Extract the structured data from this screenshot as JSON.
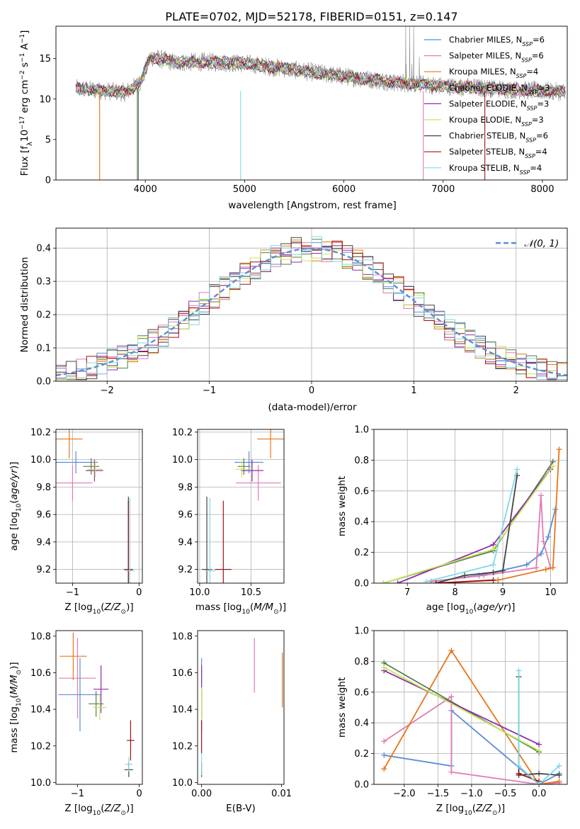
{
  "title": "PLATE=0702, MJD=52178, FIBERID=0151, z=0.147",
  "colors": {
    "chabrier_miles": "#5b8ed6",
    "salpeter_miles": "#e07bb5",
    "kroupa_miles": "#e8751a",
    "chabrier_elodie": "#5a7a55",
    "salpeter_elodie": "#8e2fa8",
    "kroupa_elodie": "#c8e65a",
    "chabrier_stelib": "#444444",
    "salpeter_stelib": "#a01010",
    "kroupa_stelib": "#80d8e6",
    "normal": "#5b8ed6",
    "grid": "#b0b0b0"
  },
  "chart_data": [
    {
      "id": "spectrum",
      "type": "line",
      "xlabel": "wavelength [Angstrom, rest frame]",
      "ylabel": "Flux [f_λ 10^-17 erg cm^-2 s^-1 A^-1]",
      "xlim": [
        3100,
        8250
      ],
      "ylim": [
        0,
        19
      ],
      "xticks": [
        "4000",
        "5000",
        "6000",
        "7000",
        "8000"
      ],
      "yticks": [
        "0",
        "5",
        "10",
        "15"
      ],
      "grid": false,
      "legend_position": "upper-right",
      "legend": [
        {
          "key": "chabrier_miles",
          "label": "Chabrier MILES, N",
          "sub": "SSP",
          "val": "=6"
        },
        {
          "key": "salpeter_miles",
          "label": "Salpeter MILES, N",
          "sub": "SSP",
          "val": "=6"
        },
        {
          "key": "kroupa_miles",
          "label": "Kroupa MILES, N",
          "sub": "SSP",
          "val": "=4"
        },
        {
          "key": "chabrier_elodie",
          "label": "Chabrier ELODIE, N",
          "sub": "SSP",
          "val": "=3"
        },
        {
          "key": "salpeter_elodie",
          "label": "Salpeter ELODIE, N",
          "sub": "SSP",
          "val": "=3"
        },
        {
          "key": "kroupa_elodie",
          "label": "Kroupa ELODIE, N",
          "sub": "SSP",
          "val": "=3"
        },
        {
          "key": "chabrier_stelib",
          "label": "Chabrier STELIB, N",
          "sub": "SSP",
          "val": "=6"
        },
        {
          "key": "salpeter_stelib",
          "label": "Salpeter STELIB, N",
          "sub": "SSP",
          "val": "=4"
        },
        {
          "key": "kroupa_stelib",
          "label": "Kroupa STELIB, N",
          "sub": "SSP",
          "val": "=4"
        }
      ],
      "continuum": [
        [
          3300,
          11.3
        ],
        [
          3600,
          11.0
        ],
        [
          3800,
          10.8
        ],
        [
          3950,
          12.0
        ],
        [
          4050,
          15.2
        ],
        [
          4300,
          14.5
        ],
        [
          4600,
          14.6
        ],
        [
          5000,
          14.4
        ],
        [
          5500,
          13.6
        ],
        [
          6000,
          12.8
        ],
        [
          6500,
          12.1
        ],
        [
          7000,
          11.6
        ],
        [
          7500,
          11.3
        ],
        [
          8000,
          11.0
        ],
        [
          8200,
          10.9
        ]
      ],
      "absorptions": [
        {
          "key": "kroupa_miles",
          "x": 3540
        },
        {
          "key": "chabrier_elodie",
          "x": 3920
        },
        {
          "key": "chabrier_elodie",
          "x": 3930
        },
        {
          "key": "kroupa_stelib",
          "x": 4960
        },
        {
          "key": "salpeter_miles",
          "x": 6800
        },
        {
          "key": "salpeter_stelib",
          "x": 7420
        }
      ]
    },
    {
      "id": "residuals",
      "type": "line",
      "xlabel": "(data-model)/error",
      "ylabel": "Normed distribution",
      "xlim": [
        -2.5,
        2.5
      ],
      "ylim": [
        0,
        0.46
      ],
      "xticks": [
        "−2",
        "−1",
        "0",
        "1",
        "2"
      ],
      "yticks": [
        "0.0",
        "0.1",
        "0.2",
        "0.3",
        "0.4"
      ],
      "grid": true,
      "legend_position": "upper-right",
      "normal_label": "N(0,1)",
      "bin_width": 0.1
    },
    {
      "id": "age_vs_Z",
      "type": "scatter",
      "xlabel": "Z [log10(Z/Z⊙)]",
      "ylabel": "age [log10(age/yr)]",
      "xlim": [
        -1.25,
        0.05
      ],
      "ylim": [
        9.1,
        10.22
      ],
      "xticks": [
        "−1",
        "0"
      ],
      "yticks": [
        "9.2",
        "9.4",
        "9.6",
        "9.8",
        "10.0",
        "10.2"
      ],
      "grid": true,
      "points": [
        {
          "key": "chabrier_miles",
          "x": -0.95,
          "y": 9.98,
          "ex": 0.33,
          "ey": 0.08
        },
        {
          "key": "salpeter_miles",
          "x": -1.0,
          "y": 9.83,
          "ex": 0.3,
          "ey": 0.13
        },
        {
          "key": "kroupa_miles",
          "x": -1.05,
          "y": 10.15,
          "ex": 0.2,
          "ey": 0.14
        },
        {
          "key": "chabrier_elodie",
          "x": -0.72,
          "y": 9.95,
          "ex": 0.12,
          "ey": 0.06
        },
        {
          "key": "salpeter_elodie",
          "x": -0.67,
          "y": 9.92,
          "ex": 0.13,
          "ey": 0.08
        },
        {
          "key": "kroupa_elodie",
          "x": -0.66,
          "y": 9.93,
          "ex": 0.11,
          "ey": 0.06
        },
        {
          "key": "chabrier_stelib",
          "x": -0.16,
          "y": 9.2,
          "ex": 0.07,
          "ey": 0.53
        },
        {
          "key": "salpeter_stelib",
          "x": -0.16,
          "y": 9.2,
          "ex": 0.06,
          "ey": 0.5
        },
        {
          "key": "kroupa_stelib",
          "x": -0.14,
          "y": 9.19,
          "ex": 0.07,
          "ey": 0.53
        }
      ]
    },
    {
      "id": "age_vs_mass",
      "type": "scatter",
      "xlabel": "mass [log10(M/M⊙)]",
      "ylabel": "",
      "xlim": [
        9.98,
        10.82
      ],
      "ylim": [
        9.1,
        10.22
      ],
      "xticks": [
        "10.0",
        "10.5"
      ],
      "yticks": [
        "9.2",
        "9.4",
        "9.6",
        "9.8",
        "10.0",
        "10.2"
      ],
      "grid": true,
      "points": [
        {
          "key": "chabrier_miles",
          "x": 10.48,
          "y": 9.98,
          "ex": 0.14,
          "ey": 0.08
        },
        {
          "key": "salpeter_miles",
          "x": 10.57,
          "y": 9.83,
          "ex": 0.22,
          "ey": 0.13
        },
        {
          "key": "kroupa_miles",
          "x": 10.69,
          "y": 10.15,
          "ex": 0.13,
          "ey": 0.14
        },
        {
          "key": "chabrier_elodie",
          "x": 10.43,
          "y": 9.95,
          "ex": 0.06,
          "ey": 0.06
        },
        {
          "key": "salpeter_elodie",
          "x": 10.51,
          "y": 9.92,
          "ex": 0.11,
          "ey": 0.08
        },
        {
          "key": "kroupa_elodie",
          "x": 10.41,
          "y": 9.93,
          "ex": 0.06,
          "ey": 0.06
        },
        {
          "key": "chabrier_stelib",
          "x": 10.07,
          "y": 9.2,
          "ex": 0.05,
          "ey": 0.53
        },
        {
          "key": "salpeter_stelib",
          "x": 10.23,
          "y": 9.2,
          "ex": 0.08,
          "ey": 0.5
        },
        {
          "key": "kroupa_stelib",
          "x": 10.1,
          "y": 9.19,
          "ex": 0.05,
          "ey": 0.53
        }
      ]
    },
    {
      "id": "weight_vs_age",
      "type": "line",
      "xlabel": "age [log10(age/yr)]",
      "ylabel": "mass weight",
      "xlim": [
        6.3,
        10.35
      ],
      "ylim": [
        0,
        1.0
      ],
      "xticks": [
        "7",
        "8",
        "9",
        "10"
      ],
      "yticks": [
        "0.0",
        "0.2",
        "0.4",
        "0.6",
        "0.8",
        "1.0"
      ],
      "grid": true,
      "series": [
        {
          "key": "chabrier_miles",
          "x": [
            7.5,
            8.5,
            9.5,
            9.8,
            9.95,
            10.1
          ],
          "y": [
            0.01,
            0.05,
            0.12,
            0.19,
            0.3,
            0.48
          ]
        },
        {
          "key": "salpeter_miles",
          "x": [
            7.5,
            8.6,
            9.7,
            9.8,
            9.85,
            10.0
          ],
          "y": [
            0.01,
            0.05,
            0.1,
            0.57,
            0.27,
            0.1
          ]
        },
        {
          "key": "kroupa_miles",
          "x": [
            7.7,
            8.9,
            9.9,
            10.05,
            10.18
          ],
          "y": [
            0.0,
            0.02,
            0.09,
            0.1,
            0.87
          ]
        },
        {
          "key": "chabrier_elodie",
          "x": [
            6.5,
            8.8,
            10.05
          ],
          "y": [
            0.0,
            0.21,
            0.79
          ]
        },
        {
          "key": "salpeter_elodie",
          "x": [
            6.8,
            8.8,
            10.0
          ],
          "y": [
            0.0,
            0.25,
            0.74
          ]
        },
        {
          "key": "kroupa_elodie",
          "x": [
            6.5,
            8.8,
            10.05
          ],
          "y": [
            0.0,
            0.22,
            0.76
          ]
        },
        {
          "key": "chabrier_stelib",
          "x": [
            7.6,
            8.2,
            8.8,
            9.0,
            9.3
          ],
          "y": [
            0.0,
            0.05,
            0.07,
            0.08,
            0.7
          ]
        },
        {
          "key": "salpeter_stelib",
          "x": [
            7.6,
            8.8
          ],
          "y": [
            0.0,
            0.02
          ]
        },
        {
          "key": "kroupa_stelib",
          "x": [
            7.4,
            8.8,
            9.3
          ],
          "y": [
            0.01,
            0.12,
            0.74
          ]
        }
      ]
    },
    {
      "id": "mass_vs_Z",
      "type": "scatter",
      "xlabel": "Z [log10(Z/Z⊙)]",
      "ylabel": "mass [log10(M/M⊙)]",
      "xlim": [
        -1.35,
        0.05
      ],
      "ylim": [
        9.99,
        10.83
      ],
      "xticks": [
        "−1",
        "0"
      ],
      "yticks": [
        "10.0",
        "10.2",
        "10.4",
        "10.6",
        "10.8"
      ],
      "grid": false,
      "points": [
        {
          "key": "chabrier_miles",
          "x": -0.96,
          "y": 10.48,
          "ex": 0.35,
          "ey": 0.2
        },
        {
          "key": "salpeter_miles",
          "x": -1.0,
          "y": 10.57,
          "ex": 0.3,
          "ey": 0.22
        },
        {
          "key": "kroupa_miles",
          "x": -1.07,
          "y": 10.69,
          "ex": 0.22,
          "ey": 0.13
        },
        {
          "key": "chabrier_elodie",
          "x": -0.7,
          "y": 10.43,
          "ex": 0.12,
          "ey": 0.07
        },
        {
          "key": "salpeter_elodie",
          "x": -0.62,
          "y": 10.51,
          "ex": 0.12,
          "ey": 0.13
        },
        {
          "key": "kroupa_elodie",
          "x": -0.64,
          "y": 10.41,
          "ex": 0.11,
          "ey": 0.07
        },
        {
          "key": "chabrier_stelib",
          "x": -0.17,
          "y": 10.07,
          "ex": 0.07,
          "ey": 0.04
        },
        {
          "key": "salpeter_stelib",
          "x": -0.14,
          "y": 10.23,
          "ex": 0.06,
          "ey": 0.11
        },
        {
          "key": "kroupa_stelib",
          "x": -0.17,
          "y": 10.1,
          "ex": 0.06,
          "ey": 0.04
        }
      ]
    },
    {
      "id": "mass_vs_ebv",
      "type": "scatter",
      "xlabel": "E(B-V)",
      "ylabel": "",
      "xlim": [
        -0.0005,
        0.0103
      ],
      "ylim": [
        9.99,
        10.83
      ],
      "xticks": [
        "0.00",
        "0.01"
      ],
      "yticks": [
        "10.0",
        "10.2",
        "10.4",
        "10.6",
        "10.8"
      ],
      "grid": false,
      "points": [
        {
          "key": "chabrier_miles",
          "x": 0.0,
          "y": 10.48,
          "ey": 0.2
        },
        {
          "key": "salpeter_miles",
          "x": 0.0066,
          "y": 10.64,
          "ey": 0.15
        },
        {
          "key": "kroupa_miles",
          "x": 0.0101,
          "y": 10.56,
          "ey": 0.15
        },
        {
          "key": "chabrier_elodie",
          "x": 0.0,
          "y": 10.43,
          "ey": 0.07
        },
        {
          "key": "salpeter_elodie",
          "x": 0.0,
          "y": 10.58,
          "ey": 0.06
        },
        {
          "key": "kroupa_elodie",
          "x": 0.0,
          "y": 10.41,
          "ey": 0.11
        },
        {
          "key": "chabrier_stelib",
          "x": 0.0,
          "y": 10.07,
          "ey": 0.04
        },
        {
          "key": "salpeter_stelib",
          "x": 0.0,
          "y": 10.25,
          "ey": 0.09
        },
        {
          "key": "kroupa_stelib",
          "x": 0.0,
          "y": 10.1,
          "ey": 0.06
        }
      ]
    },
    {
      "id": "weight_vs_Z",
      "type": "line",
      "xlabel": "Z [log10(Z/Z⊙)]",
      "ylabel": "mass weight",
      "xlim": [
        -2.45,
        0.42
      ],
      "ylim": [
        0,
        1.0
      ],
      "xticks": [
        "−2.0",
        "−1.5",
        "−1.0",
        "−0.5",
        "0.0"
      ],
      "yticks": [
        "0.0",
        "0.2",
        "0.4",
        "0.6",
        "0.8",
        "1.0"
      ],
      "grid": true,
      "series": [
        {
          "key": "chabrier_miles",
          "x": [
            -2.3,
            -1.3,
            -1.3,
            0.0,
            0.3
          ],
          "y": [
            0.19,
            0.12,
            0.48,
            0.0,
            0.07
          ]
        },
        {
          "key": "salpeter_miles",
          "x": [
            -2.3,
            -1.3,
            -1.3,
            0.0,
            0.3
          ],
          "y": [
            0.28,
            0.57,
            0.08,
            0.0,
            0.01
          ]
        },
        {
          "key": "kroupa_miles",
          "x": [
            -2.3,
            -1.3,
            0.0,
            0.3
          ],
          "y": [
            0.1,
            0.87,
            0.0,
            0.02
          ]
        },
        {
          "key": "chabrier_elodie",
          "x": [
            -2.3,
            0.0
          ],
          "y": [
            0.79,
            0.21
          ]
        },
        {
          "key": "salpeter_elodie",
          "x": [
            -2.3,
            0.0
          ],
          "y": [
            0.74,
            0.26
          ]
        },
        {
          "key": "kroupa_elodie",
          "x": [
            -2.3,
            0.0
          ],
          "y": [
            0.76,
            0.22
          ]
        },
        {
          "key": "chabrier_stelib",
          "x": [
            -0.3,
            -0.3,
            0.0,
            0.3
          ],
          "y": [
            0.7,
            0.06,
            0.07,
            0.06
          ]
        },
        {
          "key": "salpeter_stelib",
          "x": [
            -0.3,
            0.0
          ],
          "y": [
            0.07,
            0.02
          ]
        },
        {
          "key": "kroupa_stelib",
          "x": [
            -0.3,
            -0.3,
            0.0,
            0.3
          ],
          "y": [
            0.74,
            0.12,
            0.0,
            0.12
          ]
        }
      ]
    }
  ]
}
